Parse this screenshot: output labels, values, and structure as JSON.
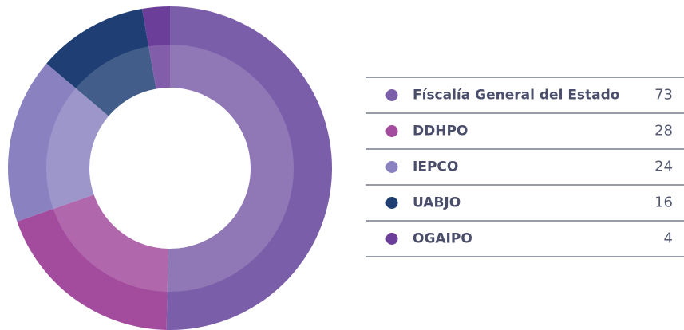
{
  "chart_data": {
    "type": "pie",
    "donut": true,
    "categories": [
      "Físcalía General del Estado",
      "DDHPO",
      "IEPCO",
      "UABJO",
      "OGAIPO"
    ],
    "values": [
      73,
      28,
      24,
      16,
      4
    ],
    "colors": [
      "#7b5ea9",
      "#a34b9d",
      "#8a82c0",
      "#1f3f74",
      "#6b3e9a"
    ]
  }
}
